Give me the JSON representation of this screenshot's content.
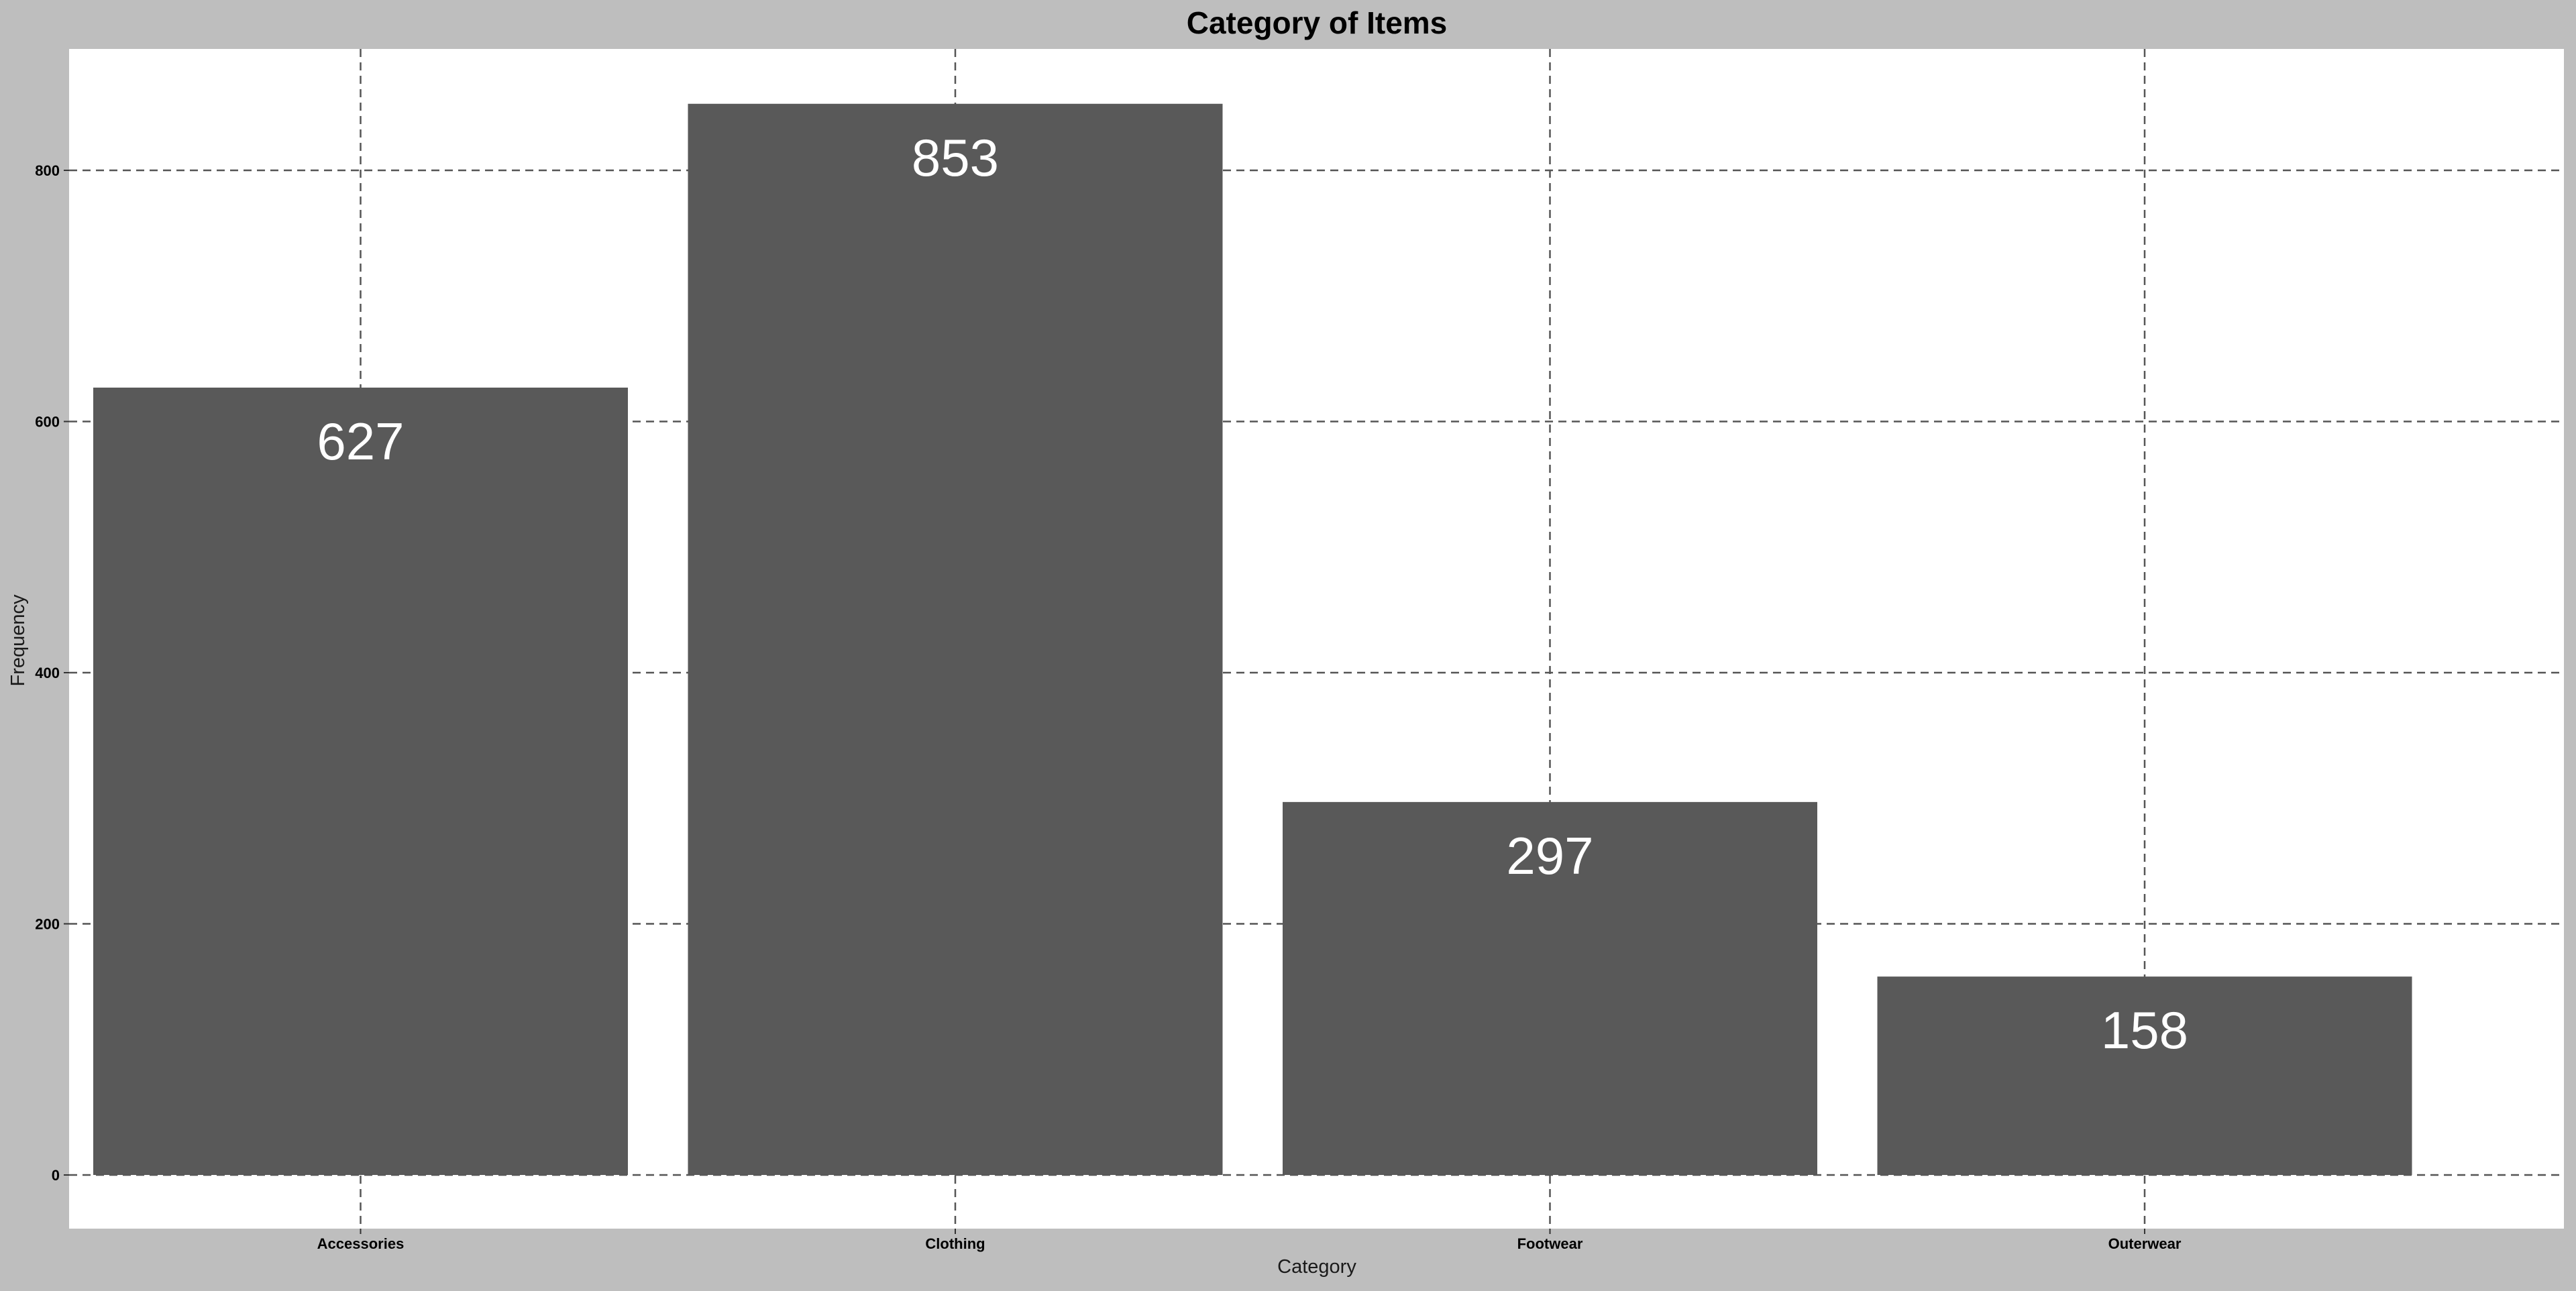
{
  "chart_data": {
    "type": "bar",
    "title": "Category of Items",
    "xlabel": "Category",
    "ylabel": "Frequency",
    "categories": [
      "Accessories",
      "Clothing",
      "Footwear",
      "Outerwear"
    ],
    "values": [
      627,
      853,
      297,
      158
    ],
    "data_labels": [
      "627",
      "853",
      "297",
      "158"
    ],
    "ylim": [
      -37,
      938
    ],
    "yticks": [
      0,
      200,
      400,
      600,
      800
    ],
    "ytick_labels": [
      "0",
      "200",
      "400",
      "600",
      "800"
    ],
    "grid": true,
    "legend": "none",
    "colors": {
      "bar": "#595959",
      "plot_background": "#ffffff",
      "figure_background": "#bebebe",
      "grid": "#555555",
      "data_label": "#ffffff"
    }
  }
}
